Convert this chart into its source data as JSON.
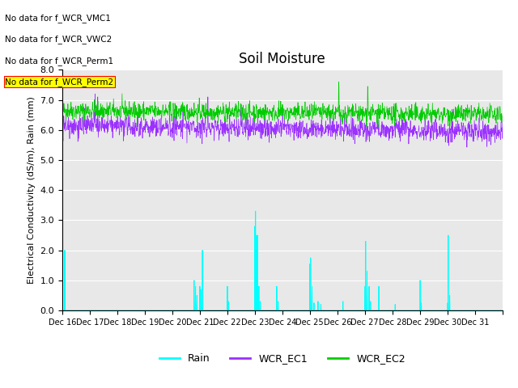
{
  "title": "Soil Moisture",
  "ylabel": "Electrical Conductivity (dS/m), Rain (mm)",
  "xlabel": "",
  "ylim": [
    0.0,
    8.0
  ],
  "yticks": [
    0.0,
    1.0,
    2.0,
    3.0,
    4.0,
    5.0,
    6.0,
    7.0,
    8.0
  ],
  "xtick_labels": [
    "Dec 16",
    "Dec 17",
    "Dec 18",
    "Dec 19",
    "Dec 20",
    "Dec 21",
    "Dec 22",
    "Dec 23",
    "Dec 24",
    "Dec 25",
    "Dec 26",
    "Dec 27",
    "Dec 28",
    "Dec 29",
    "Dec 30",
    "Dec 31"
  ],
  "legend_labels": [
    "Rain",
    "WCR_EC1",
    "WCR_EC2"
  ],
  "legend_colors": [
    "#00ffff",
    "#9b30ff",
    "#00cc00"
  ],
  "no_data_texts": [
    "No data for f_WCR_VMC1",
    "No data for f_WCR_VWC2",
    "No data for f_WCR_Perm1",
    "No data for f_WCR_Perm2"
  ],
  "bg_color": "#e8e8e8",
  "rain_color": "#00ffff",
  "ec1_color": "#9b30ff",
  "ec2_color": "#00cc00",
  "title_fontsize": 12,
  "axis_label_fontsize": 8,
  "tick_fontsize": 8
}
